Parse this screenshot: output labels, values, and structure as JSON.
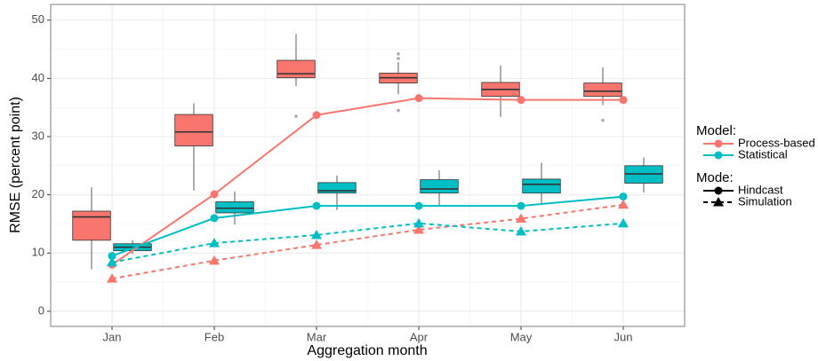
{
  "chart_data": {
    "type": "box-line",
    "x_label": "Aggregation month",
    "y_label": "RMSE (percent point)",
    "categories": [
      "Jan",
      "Feb",
      "Mar",
      "Apr",
      "May",
      "Jun"
    ],
    "ylim": [
      -2.6,
      52.7
    ],
    "yticks": [
      0,
      10,
      20,
      30,
      40,
      50
    ],
    "grid": true,
    "legend": {
      "position": "right",
      "model_title": "Model:",
      "mode_title": "Mode:"
    },
    "modes": [
      {
        "name": "Hindcast",
        "dash": "none",
        "marker": "circle"
      },
      {
        "name": "Simulation",
        "dash": "5 4",
        "marker": "triangle"
      }
    ],
    "models": [
      {
        "name": "Process-based",
        "color": "#F8766D",
        "boxes": [
          {
            "low": 7.2,
            "q1": 12.2,
            "median": 16.2,
            "q3": 17.2,
            "high": 21.3,
            "outliers": []
          },
          {
            "low": 20.7,
            "q1": 28.4,
            "median": 30.8,
            "q3": 33.8,
            "high": 35.7,
            "outliers": []
          },
          {
            "low": 38.7,
            "q1": 40.1,
            "median": 40.8,
            "q3": 43.1,
            "high": 47.6,
            "outliers": [
              33.5
            ]
          },
          {
            "low": 37.3,
            "q1": 39.2,
            "median": 40.1,
            "q3": 40.9,
            "high": 42.8,
            "outliers": [
              44.2,
              43.4,
              34.5
            ]
          },
          {
            "low": 33.4,
            "q1": 36.9,
            "median": 38.1,
            "q3": 39.3,
            "high": 42.2,
            "outliers": []
          },
          {
            "low": 35.4,
            "q1": 36.9,
            "median": 37.8,
            "q3": 39.2,
            "high": 41.9,
            "outliers": [
              32.8
            ]
          }
        ],
        "lines": [
          [
            8.0,
            20.1,
            33.7,
            36.6,
            36.3,
            36.3
          ],
          [
            5.6,
            8.7,
            11.4,
            14.0,
            15.9,
            18.3
          ]
        ]
      },
      {
        "name": "Statistical",
        "color": "#00BFC4",
        "boxes": [
          {
            "low": 9.9,
            "q1": 10.4,
            "median": 11.0,
            "q3": 11.6,
            "high": 12.2,
            "outliers": []
          },
          {
            "low": 14.9,
            "q1": 16.9,
            "median": 17.7,
            "q3": 18.8,
            "high": 20.6,
            "outliers": []
          },
          {
            "low": 17.4,
            "q1": 20.3,
            "median": 20.7,
            "q3": 22.1,
            "high": 23.3,
            "outliers": []
          },
          {
            "low": 18.1,
            "q1": 20.3,
            "median": 21.0,
            "q3": 22.6,
            "high": 24.2,
            "outliers": []
          },
          {
            "low": 18.4,
            "q1": 20.3,
            "median": 21.8,
            "q3": 22.7,
            "high": 25.5,
            "outliers": []
          },
          {
            "low": 20.4,
            "q1": 22.0,
            "median": 23.6,
            "q3": 25.0,
            "high": 26.4,
            "outliers": []
          }
        ],
        "lines": [
          [
            9.5,
            16.0,
            18.1,
            18.1,
            18.1,
            19.7
          ],
          [
            8.4,
            11.7,
            13.1,
            15.1,
            13.7,
            15.1
          ]
        ]
      }
    ]
  }
}
